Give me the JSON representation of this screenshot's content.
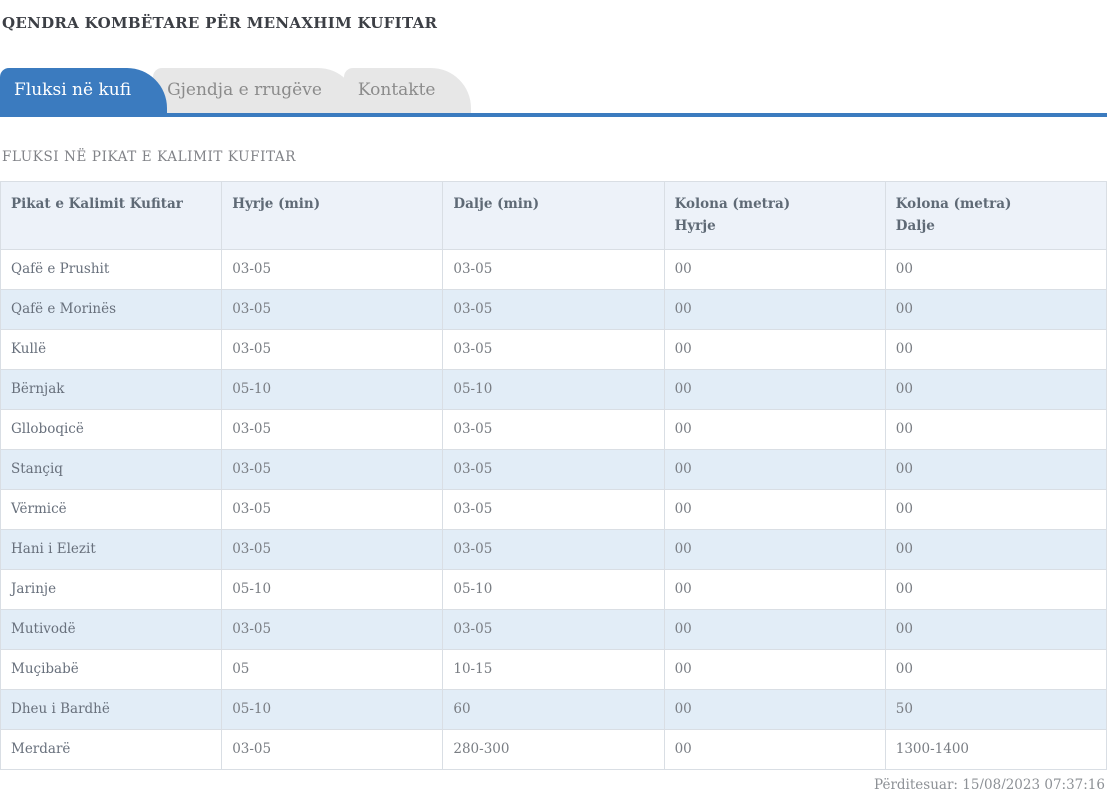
{
  "page": {
    "title": "QENDRA KOMBËTARE PËR MENAXHIM KUFITAR",
    "last_updated": "Përditesuar: 15/08/2023 07:37:16"
  },
  "tabs": [
    {
      "label": "Fluksi në kufi",
      "active": true
    },
    {
      "label": "Gjendja e rrugëve",
      "active": false
    },
    {
      "label": "Kontakte",
      "active": false
    }
  ],
  "section": {
    "title": "FLUKSI NË PIKAT E KALIMIT KUFITAR"
  },
  "table": {
    "columns": [
      {
        "title": "Pikat e Kalimit Kufitar",
        "subtitle": ""
      },
      {
        "title": "Hyrje (min)",
        "subtitle": ""
      },
      {
        "title": "Dalje (min)",
        "subtitle": ""
      },
      {
        "title": "Kolona (metra)",
        "subtitle": "Hyrje"
      },
      {
        "title": "Kolona (metra)",
        "subtitle": "Dalje"
      }
    ],
    "rows": [
      {
        "name": "Qafë e Prushit",
        "hyrje_min": "03-05",
        "dalje_min": "03-05",
        "kolona_hyrje": "00",
        "kolona_dalje": "00"
      },
      {
        "name": "Qafë e Morinës",
        "hyrje_min": "03-05",
        "dalje_min": "03-05",
        "kolona_hyrje": "00",
        "kolona_dalje": "00"
      },
      {
        "name": "Kullë",
        "hyrje_min": "03-05",
        "dalje_min": "03-05",
        "kolona_hyrje": "00",
        "kolona_dalje": "00"
      },
      {
        "name": "Bërnjak",
        "hyrje_min": "05-10",
        "dalje_min": "05-10",
        "kolona_hyrje": "00",
        "kolona_dalje": "00"
      },
      {
        "name": "Glloboqicë",
        "hyrje_min": "03-05",
        "dalje_min": "03-05",
        "kolona_hyrje": "00",
        "kolona_dalje": "00"
      },
      {
        "name": "Stançiq",
        "hyrje_min": "03-05",
        "dalje_min": "03-05",
        "kolona_hyrje": "00",
        "kolona_dalje": "00"
      },
      {
        "name": "Vërmicë",
        "hyrje_min": "03-05",
        "dalje_min": "03-05",
        "kolona_hyrje": "00",
        "kolona_dalje": "00"
      },
      {
        "name": "Hani i Elezit",
        "hyrje_min": "03-05",
        "dalje_min": "03-05",
        "kolona_hyrje": "00",
        "kolona_dalje": "00"
      },
      {
        "name": "Jarinje",
        "hyrje_min": "05-10",
        "dalje_min": "05-10",
        "kolona_hyrje": "00",
        "kolona_dalje": "00"
      },
      {
        "name": "Mutivodë",
        "hyrje_min": "03-05",
        "dalje_min": "03-05",
        "kolona_hyrje": "00",
        "kolona_dalje": "00"
      },
      {
        "name": "Muçibabë",
        "hyrje_min": "05",
        "dalje_min": "10-15",
        "kolona_hyrje": "00",
        "kolona_dalje": "00"
      },
      {
        "name": "Dheu i Bardhë",
        "hyrje_min": "05-10",
        "dalje_min": "60",
        "kolona_hyrje": "00",
        "kolona_dalje": "50"
      },
      {
        "name": "Merdarë",
        "hyrje_min": "03-05",
        "dalje_min": "280-300",
        "kolona_hyrje": "00",
        "kolona_dalje": "1300-1400"
      }
    ]
  },
  "colors": {
    "accent_blue": "#3b7bbf",
    "tab_inactive_bg": "#e7e7e7",
    "tab_inactive_text": "#8b8b8b",
    "table_header_bg": "#edf2f9",
    "row_stripe_bg": "#e2edf7",
    "table_border": "#d9dee4"
  }
}
